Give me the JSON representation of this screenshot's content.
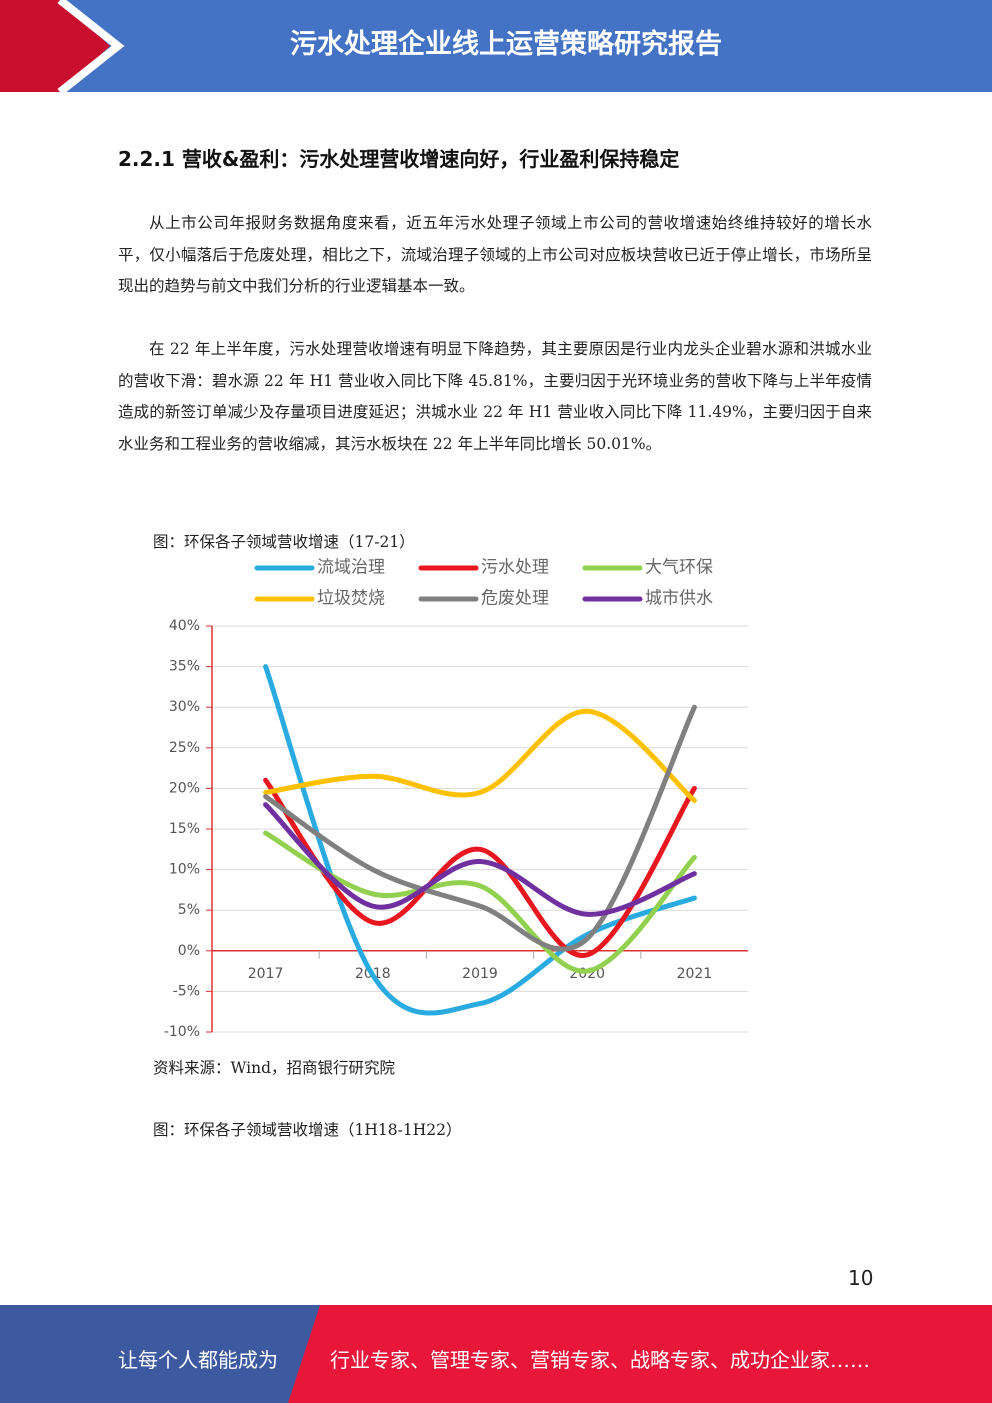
{
  "header": {
    "title": "污水处理企业线上运营策略研究报告"
  },
  "section": {
    "heading": "2.2.1 营收&盈利：污水处理营收增速向好，行业盈利保持稳定",
    "paragraphs": [
      "从上市公司年报财务数据角度来看，近五年污水处理子领域上市公司的营收增速始终维持较好的增长水平，仅小幅落后于危废处理，相比之下，流域治理子领域的上市公司对应板块营收已近于停止增长，市场所呈现出的趋势与前文中我们分析的行业逻辑基本一致。",
      "在 22 年上半年度，污水处理营收增速有明显下降趋势，其主要原因是行业内龙头企业碧水源和洪城水业的营收下滑：碧水源 22 年 H1 营业收入同比下降 45.81%，主要归因于光环境业务的营收下降与上半年疫情造成的新签订单减少及存量项目进度延迟；洪城水业 22 年 H1 营业收入同比下降 11.49%，主要归因于自来水业务和工程业务的营收缩减，其污水板块在 22 年上半年同比增长 50.01%。"
    ]
  },
  "figure1": {
    "caption": "图：环保各子领域营收增速（17-21）",
    "source": "资料来源：Wind，招商银行研究院"
  },
  "chart_data": {
    "type": "line",
    "smooth": true,
    "grid": true,
    "categories": [
      "2017",
      "2018",
      "2019",
      "2020",
      "2021"
    ],
    "ylim": [
      -10,
      40
    ],
    "yticks": [
      {
        "value": -10,
        "label": "-10%"
      },
      {
        "value": -5,
        "label": "-5%"
      },
      {
        "value": 0,
        "label": "0%"
      },
      {
        "value": 5,
        "label": "5%"
      },
      {
        "value": 10,
        "label": "10%"
      },
      {
        "value": 15,
        "label": "15%"
      },
      {
        "value": 20,
        "label": "20%"
      },
      {
        "value": 25,
        "label": "25%"
      },
      {
        "value": 30,
        "label": "30%"
      },
      {
        "value": 35,
        "label": "35%"
      },
      {
        "value": 40,
        "label": "40%"
      }
    ],
    "series": [
      {
        "name": "流域治理",
        "color": "#29abe2",
        "values": [
          35,
          -3,
          -6.5,
          2,
          6.5
        ]
      },
      {
        "name": "污水处理",
        "color": "#e8171f",
        "values": [
          21,
          3.5,
          12.5,
          -0.5,
          20
        ]
      },
      {
        "name": "大气环保",
        "color": "#92d050",
        "values": [
          14.5,
          7,
          8,
          -2.5,
          11.5
        ]
      },
      {
        "name": "垃圾焚烧",
        "color": "#ffc000",
        "values": [
          19.5,
          21.5,
          19.5,
          29.5,
          18.5
        ]
      },
      {
        "name": "危废处理",
        "color": "#808080",
        "values": [
          19,
          10,
          5.5,
          1.5,
          30
        ]
      },
      {
        "name": "城市供水",
        "color": "#7030a0",
        "values": [
          18,
          5.5,
          11,
          4.5,
          9.5
        ]
      }
    ]
  },
  "figure2": {
    "caption": "图：环保各子领域营收增速（1H18-1H22）"
  },
  "page_number": "10",
  "footer": {
    "lead": "让每个人都能成为",
    "slogan": "行业专家、管理专家、营销专家、战略专家、成功企业家……"
  }
}
